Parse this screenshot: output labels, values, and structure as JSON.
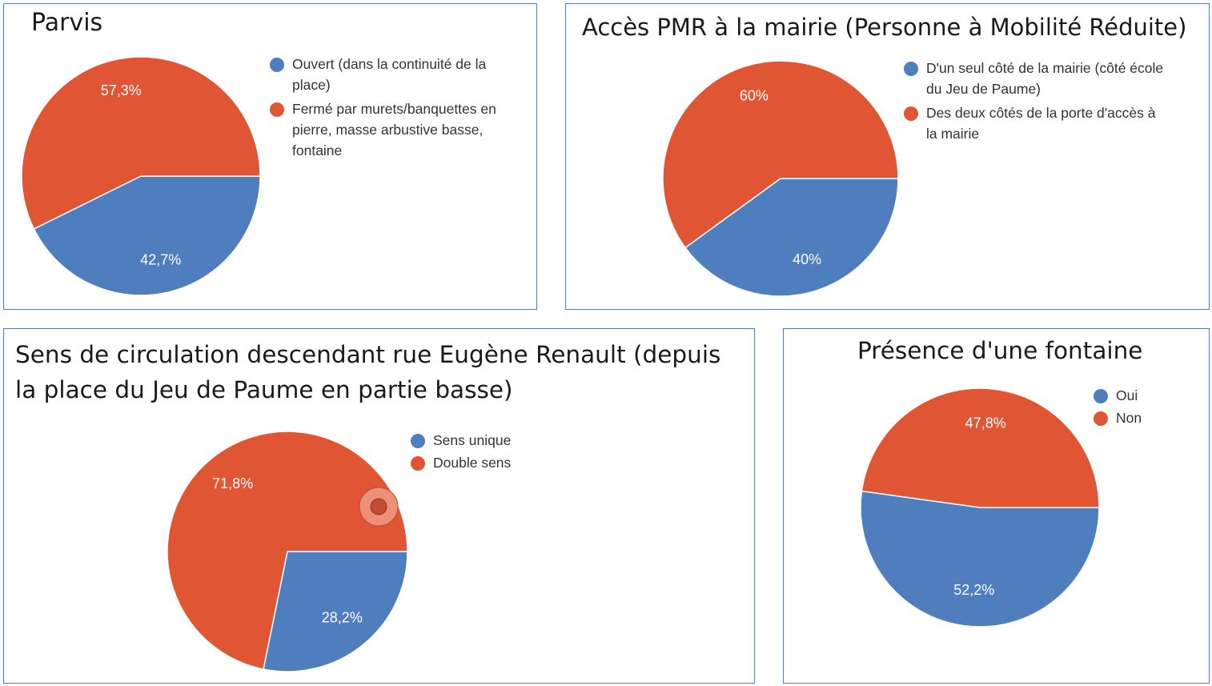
{
  "colors": {
    "blue": "#4f7ebf",
    "red": "#e05533",
    "border": "#5b7cb8"
  },
  "chart_data": [
    {
      "type": "pie",
      "title": "Parvis",
      "categories": [
        "Ouvert (dans la continuité de la place)",
        "Fermé par murets/banquettes en pierre, masse arbustive basse, fontaine"
      ],
      "values": [
        42.7,
        57.3
      ],
      "labels": [
        "42,7%",
        "57,3%"
      ],
      "colors": [
        "#4f7ebf",
        "#e05533"
      ],
      "legend_position": "right"
    },
    {
      "type": "pie",
      "title": "Accès PMR à la mairie (Personne à Mobilité Réduite)",
      "categories": [
        "D'un seul côté de la mairie (côté école du Jeu de Paume)",
        "Des deux côtés de la porte d'accès à la mairie"
      ],
      "values": [
        40,
        60
      ],
      "labels": [
        "40%",
        "60%"
      ],
      "colors": [
        "#4f7ebf",
        "#e05533"
      ],
      "legend_position": "right"
    },
    {
      "type": "pie",
      "title": "Sens de circulation descendant rue Eugène Renault (depuis la place du Jeu de Paume en partie basse)",
      "categories": [
        "Sens unique",
        "Double sens"
      ],
      "values": [
        28.2,
        71.8
      ],
      "labels": [
        "28,2%",
        "71,8%"
      ],
      "colors": [
        "#4f7ebf",
        "#e05533"
      ],
      "legend_position": "right"
    },
    {
      "type": "pie",
      "title": "Présence d'une fontaine",
      "categories": [
        "Oui",
        "Non"
      ],
      "values": [
        52.2,
        47.8
      ],
      "labels": [
        "52,2%",
        "47,8%"
      ],
      "colors": [
        "#4f7ebf",
        "#e05533"
      ],
      "legend_position": "top-right"
    }
  ]
}
